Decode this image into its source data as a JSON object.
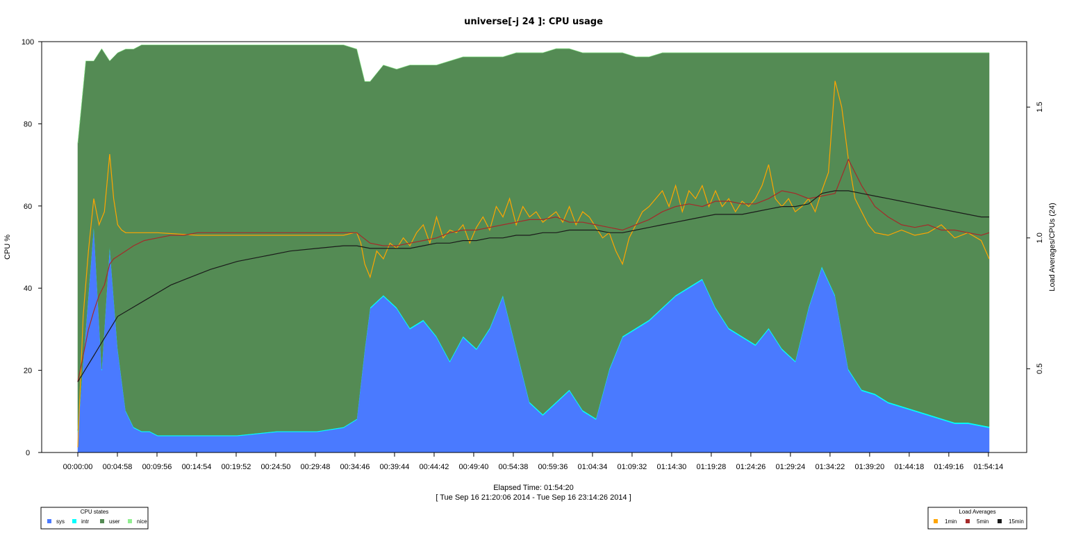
{
  "chart_data": {
    "type": "area",
    "title": "universe[-j 24  ]: CPU usage",
    "xlabel": "Elapsed Time: 01:54:20",
    "xlabel_range": "[ Tue Sep 16 21:20:06 2014 - Tue Sep 16 23:14:26 2014 ]",
    "ylabel": "CPU %",
    "y2label": "Load Averages/CPUs (24)",
    "xlim": [
      0,
      6860
    ],
    "ylim": [
      0,
      100
    ],
    "y2lim": [
      0.18,
      1.75
    ],
    "x_tick_values": [
      0,
      298,
      596,
      894,
      1192,
      1490,
      1788,
      2086,
      2384,
      2682,
      2980,
      3278,
      3576,
      3874,
      4172,
      4470,
      4768,
      5066,
      5364,
      5662,
      5960,
      6258,
      6556,
      6854
    ],
    "x_tick_labels": [
      "00:00:00",
      "00:04:58",
      "00:09:56",
      "00:14:54",
      "00:19:52",
      "00:24:50",
      "00:29:48",
      "00:34:46",
      "00:39:44",
      "00:44:42",
      "00:49:40",
      "00:54:38",
      "00:59:36",
      "01:04:34",
      "01:09:32",
      "01:14:30",
      "01:19:28",
      "01:24:26",
      "01:29:24",
      "01:34:22",
      "01:39:20",
      "01:44:18",
      "01:49:16",
      "01:54:14"
    ],
    "y_ticks": [
      0,
      20,
      40,
      60,
      80,
      100
    ],
    "y2_ticks": [
      0.5,
      1.0,
      1.5
    ],
    "y2_tick_labels": [
      "0.5",
      "1.0",
      "1.5"
    ],
    "stack_x": [
      0,
      60,
      120,
      180,
      240,
      300,
      360,
      420,
      480,
      540,
      600,
      900,
      1200,
      1500,
      1800,
      2000,
      2100,
      2160,
      2200,
      2300,
      2400,
      2500,
      2600,
      2700,
      2800,
      2900,
      3000,
      3100,
      3200,
      3300,
      3400,
      3500,
      3600,
      3700,
      3800,
      3900,
      4000,
      4100,
      4200,
      4300,
      4400,
      4500,
      4600,
      4700,
      4800,
      4900,
      5000,
      5100,
      5200,
      5300,
      5400,
      5500,
      5600,
      5700,
      5800,
      5900,
      6000,
      6100,
      6200,
      6300,
      6400,
      6500,
      6600,
      6700,
      6860
    ],
    "series": [
      {
        "name": "sys",
        "color": "#4a7aff",
        "values": [
          5,
          30,
          55,
          20,
          50,
          25,
          10,
          6,
          5,
          5,
          4,
          4,
          4,
          5,
          5,
          6,
          8,
          25,
          35,
          38,
          35,
          30,
          32,
          28,
          22,
          28,
          25,
          30,
          38,
          25,
          12,
          9,
          12,
          15,
          10,
          8,
          20,
          28,
          30,
          32,
          35,
          38,
          40,
          42,
          35,
          30,
          28,
          26,
          30,
          25,
          22,
          35,
          45,
          38,
          20,
          15,
          14,
          12,
          11,
          10,
          9,
          8,
          7,
          7,
          6
        ]
      },
      {
        "name": "intr",
        "color": "#00ffff",
        "values": [
          0.3,
          0.3,
          0.3,
          0.3,
          0.3,
          0.3,
          0.2,
          0.2,
          0.2,
          0.2,
          0.2,
          0.2,
          0.2,
          0.2,
          0.2,
          0.2,
          0.2,
          0.3,
          0.3,
          0.3,
          0.3,
          0.3,
          0.3,
          0.3,
          0.3,
          0.3,
          0.3,
          0.3,
          0.3,
          0.3,
          0.3,
          0.3,
          0.3,
          0.3,
          0.3,
          0.3,
          0.3,
          0.3,
          0.3,
          0.3,
          0.3,
          0.3,
          0.3,
          0.3,
          0.3,
          0.3,
          0.3,
          0.3,
          0.3,
          0.3,
          0.3,
          0.3,
          0.3,
          0.3,
          0.3,
          0.3,
          0.3,
          0.3,
          0.3,
          0.3,
          0.3,
          0.3,
          0.3,
          0.3,
          0.3
        ]
      },
      {
        "name": "user",
        "color": "#548b54",
        "values": [
          70,
          65,
          40,
          78,
          45,
          72,
          88,
          92,
          94,
          94,
          95,
          95,
          95,
          94,
          94,
          93,
          90,
          65,
          55,
          56,
          58,
          64,
          62,
          66,
          73,
          68,
          71,
          66,
          58,
          72,
          85,
          88,
          86,
          83,
          87,
          89,
          77,
          69,
          66,
          64,
          62,
          59,
          57,
          55,
          62,
          67,
          69,
          71,
          67,
          72,
          75,
          62,
          52,
          59,
          77,
          82,
          83,
          85,
          86,
          87,
          88,
          89,
          90,
          90,
          91
        ]
      },
      {
        "name": "nice",
        "color": "#90ee90",
        "values": [
          0,
          0,
          0,
          0,
          0,
          0,
          0,
          0,
          0,
          0,
          0,
          0,
          0,
          0,
          0,
          0,
          0,
          0,
          0,
          0,
          0,
          0,
          0,
          0,
          0,
          0,
          0,
          0,
          0,
          0,
          0,
          0,
          0,
          0,
          0,
          0,
          0,
          0,
          0,
          0,
          0,
          0,
          0,
          0,
          0,
          0,
          0,
          0,
          0,
          0,
          0,
          0,
          0,
          0,
          0,
          0,
          0,
          0,
          0,
          0,
          0,
          0,
          0,
          0,
          0
        ]
      }
    ],
    "load_series": [
      {
        "name": "1min",
        "color": "#ffa500",
        "x": [
          0,
          40,
          80,
          120,
          160,
          200,
          240,
          270,
          300,
          330,
          360,
          420,
          500,
          600,
          900,
          1200,
          1500,
          1800,
          2000,
          2080,
          2100,
          2130,
          2160,
          2200,
          2250,
          2300,
          2350,
          2400,
          2450,
          2500,
          2550,
          2600,
          2650,
          2700,
          2750,
          2800,
          2850,
          2900,
          2950,
          3000,
          3050,
          3100,
          3150,
          3200,
          3250,
          3300,
          3350,
          3400,
          3450,
          3500,
          3550,
          3600,
          3650,
          3700,
          3750,
          3800,
          3850,
          3900,
          3950,
          4000,
          4050,
          4100,
          4150,
          4200,
          4250,
          4300,
          4350,
          4400,
          4450,
          4500,
          4550,
          4600,
          4650,
          4700,
          4750,
          4800,
          4850,
          4900,
          4950,
          5000,
          5050,
          5100,
          5150,
          5200,
          5250,
          5300,
          5350,
          5400,
          5450,
          5500,
          5550,
          5600,
          5650,
          5700,
          5750,
          5800,
          5850,
          5900,
          5950,
          6000,
          6100,
          6200,
          6300,
          6400,
          6500,
          6600,
          6700,
          6800,
          6860
        ],
        "y": [
          0.2,
          0.7,
          0.95,
          1.15,
          1.05,
          1.1,
          1.32,
          1.15,
          1.05,
          1.03,
          1.02,
          1.02,
          1.02,
          1.02,
          1.01,
          1.01,
          1.01,
          1.01,
          1.01,
          1.02,
          1.02,
          0.98,
          0.9,
          0.85,
          0.95,
          0.92,
          0.98,
          0.96,
          1.0,
          0.97,
          1.02,
          1.05,
          0.98,
          1.08,
          1.0,
          1.03,
          1.02,
          1.05,
          0.98,
          1.04,
          1.08,
          1.03,
          1.12,
          1.08,
          1.15,
          1.05,
          1.12,
          1.08,
          1.1,
          1.06,
          1.08,
          1.1,
          1.06,
          1.12,
          1.05,
          1.1,
          1.08,
          1.04,
          1.0,
          1.02,
          0.95,
          0.9,
          1.0,
          1.05,
          1.1,
          1.12,
          1.15,
          1.18,
          1.12,
          1.2,
          1.1,
          1.18,
          1.15,
          1.2,
          1.12,
          1.18,
          1.12,
          1.15,
          1.1,
          1.14,
          1.12,
          1.15,
          1.2,
          1.28,
          1.15,
          1.12,
          1.15,
          1.1,
          1.12,
          1.15,
          1.1,
          1.18,
          1.25,
          1.6,
          1.5,
          1.3,
          1.15,
          1.1,
          1.05,
          1.02,
          1.01,
          1.03,
          1.01,
          1.02,
          1.05,
          1.0,
          1.02,
          0.99,
          0.92
        ]
      },
      {
        "name": "5min",
        "color": "#a52a2a",
        "x": [
          0,
          40,
          80,
          120,
          160,
          200,
          240,
          270,
          300,
          360,
          420,
          500,
          600,
          700,
          800,
          900,
          1200,
          1500,
          1800,
          2000,
          2100,
          2200,
          2300,
          2400,
          2500,
          2600,
          2700,
          2800,
          2900,
          3000,
          3100,
          3200,
          3300,
          3400,
          3500,
          3600,
          3700,
          3800,
          3900,
          4000,
          4100,
          4200,
          4300,
          4400,
          4500,
          4600,
          4700,
          4800,
          4900,
          5000,
          5100,
          5200,
          5300,
          5400,
          5500,
          5600,
          5700,
          5800,
          5900,
          6000,
          6100,
          6200,
          6300,
          6400,
          6500,
          6600,
          6700,
          6800,
          6860
        ],
        "y": [
          0.45,
          0.55,
          0.65,
          0.72,
          0.78,
          0.82,
          0.9,
          0.92,
          0.93,
          0.95,
          0.97,
          0.99,
          1.0,
          1.01,
          1.01,
          1.02,
          1.02,
          1.02,
          1.02,
          1.02,
          1.02,
          0.98,
          0.97,
          0.97,
          0.98,
          0.99,
          1.0,
          1.02,
          1.03,
          1.03,
          1.04,
          1.05,
          1.06,
          1.07,
          1.07,
          1.08,
          1.06,
          1.06,
          1.05,
          1.04,
          1.03,
          1.05,
          1.07,
          1.1,
          1.12,
          1.13,
          1.12,
          1.14,
          1.14,
          1.13,
          1.13,
          1.15,
          1.18,
          1.17,
          1.15,
          1.16,
          1.17,
          1.3,
          1.2,
          1.12,
          1.08,
          1.05,
          1.04,
          1.05,
          1.03,
          1.03,
          1.02,
          1.01,
          1.02
        ]
      },
      {
        "name": "15min",
        "color": "#1a1a1a",
        "x": [
          0,
          60,
          120,
          180,
          240,
          300,
          400,
          500,
          600,
          700,
          800,
          900,
          1000,
          1200,
          1400,
          1600,
          1800,
          2000,
          2100,
          2200,
          2300,
          2400,
          2500,
          2600,
          2700,
          2800,
          2900,
          3000,
          3100,
          3200,
          3300,
          3400,
          3500,
          3600,
          3700,
          3800,
          3900,
          4000,
          4100,
          4200,
          4300,
          4400,
          4500,
          4600,
          4700,
          4800,
          4900,
          5000,
          5100,
          5200,
          5300,
          5400,
          5500,
          5600,
          5700,
          5800,
          5900,
          6000,
          6100,
          6200,
          6300,
          6400,
          6500,
          6600,
          6700,
          6800,
          6860
        ],
        "y": [
          0.45,
          0.5,
          0.55,
          0.6,
          0.65,
          0.7,
          0.73,
          0.76,
          0.79,
          0.82,
          0.84,
          0.86,
          0.88,
          0.91,
          0.93,
          0.95,
          0.96,
          0.97,
          0.97,
          0.96,
          0.96,
          0.96,
          0.96,
          0.97,
          0.98,
          0.98,
          0.99,
          0.99,
          1.0,
          1.0,
          1.01,
          1.01,
          1.02,
          1.02,
          1.03,
          1.03,
          1.03,
          1.02,
          1.02,
          1.03,
          1.04,
          1.05,
          1.06,
          1.07,
          1.08,
          1.09,
          1.09,
          1.09,
          1.1,
          1.11,
          1.12,
          1.12,
          1.13,
          1.17,
          1.18,
          1.18,
          1.17,
          1.16,
          1.15,
          1.14,
          1.13,
          1.12,
          1.11,
          1.1,
          1.09,
          1.08,
          1.08
        ]
      }
    ],
    "legend_cpu": {
      "title": "CPU states",
      "position": "bottom-left",
      "items": [
        "sys",
        "intr",
        "user",
        "nice"
      ]
    },
    "legend_load": {
      "title": "Load Averages",
      "position": "bottom-right",
      "items": [
        "1min",
        "5min",
        "15min"
      ]
    }
  }
}
